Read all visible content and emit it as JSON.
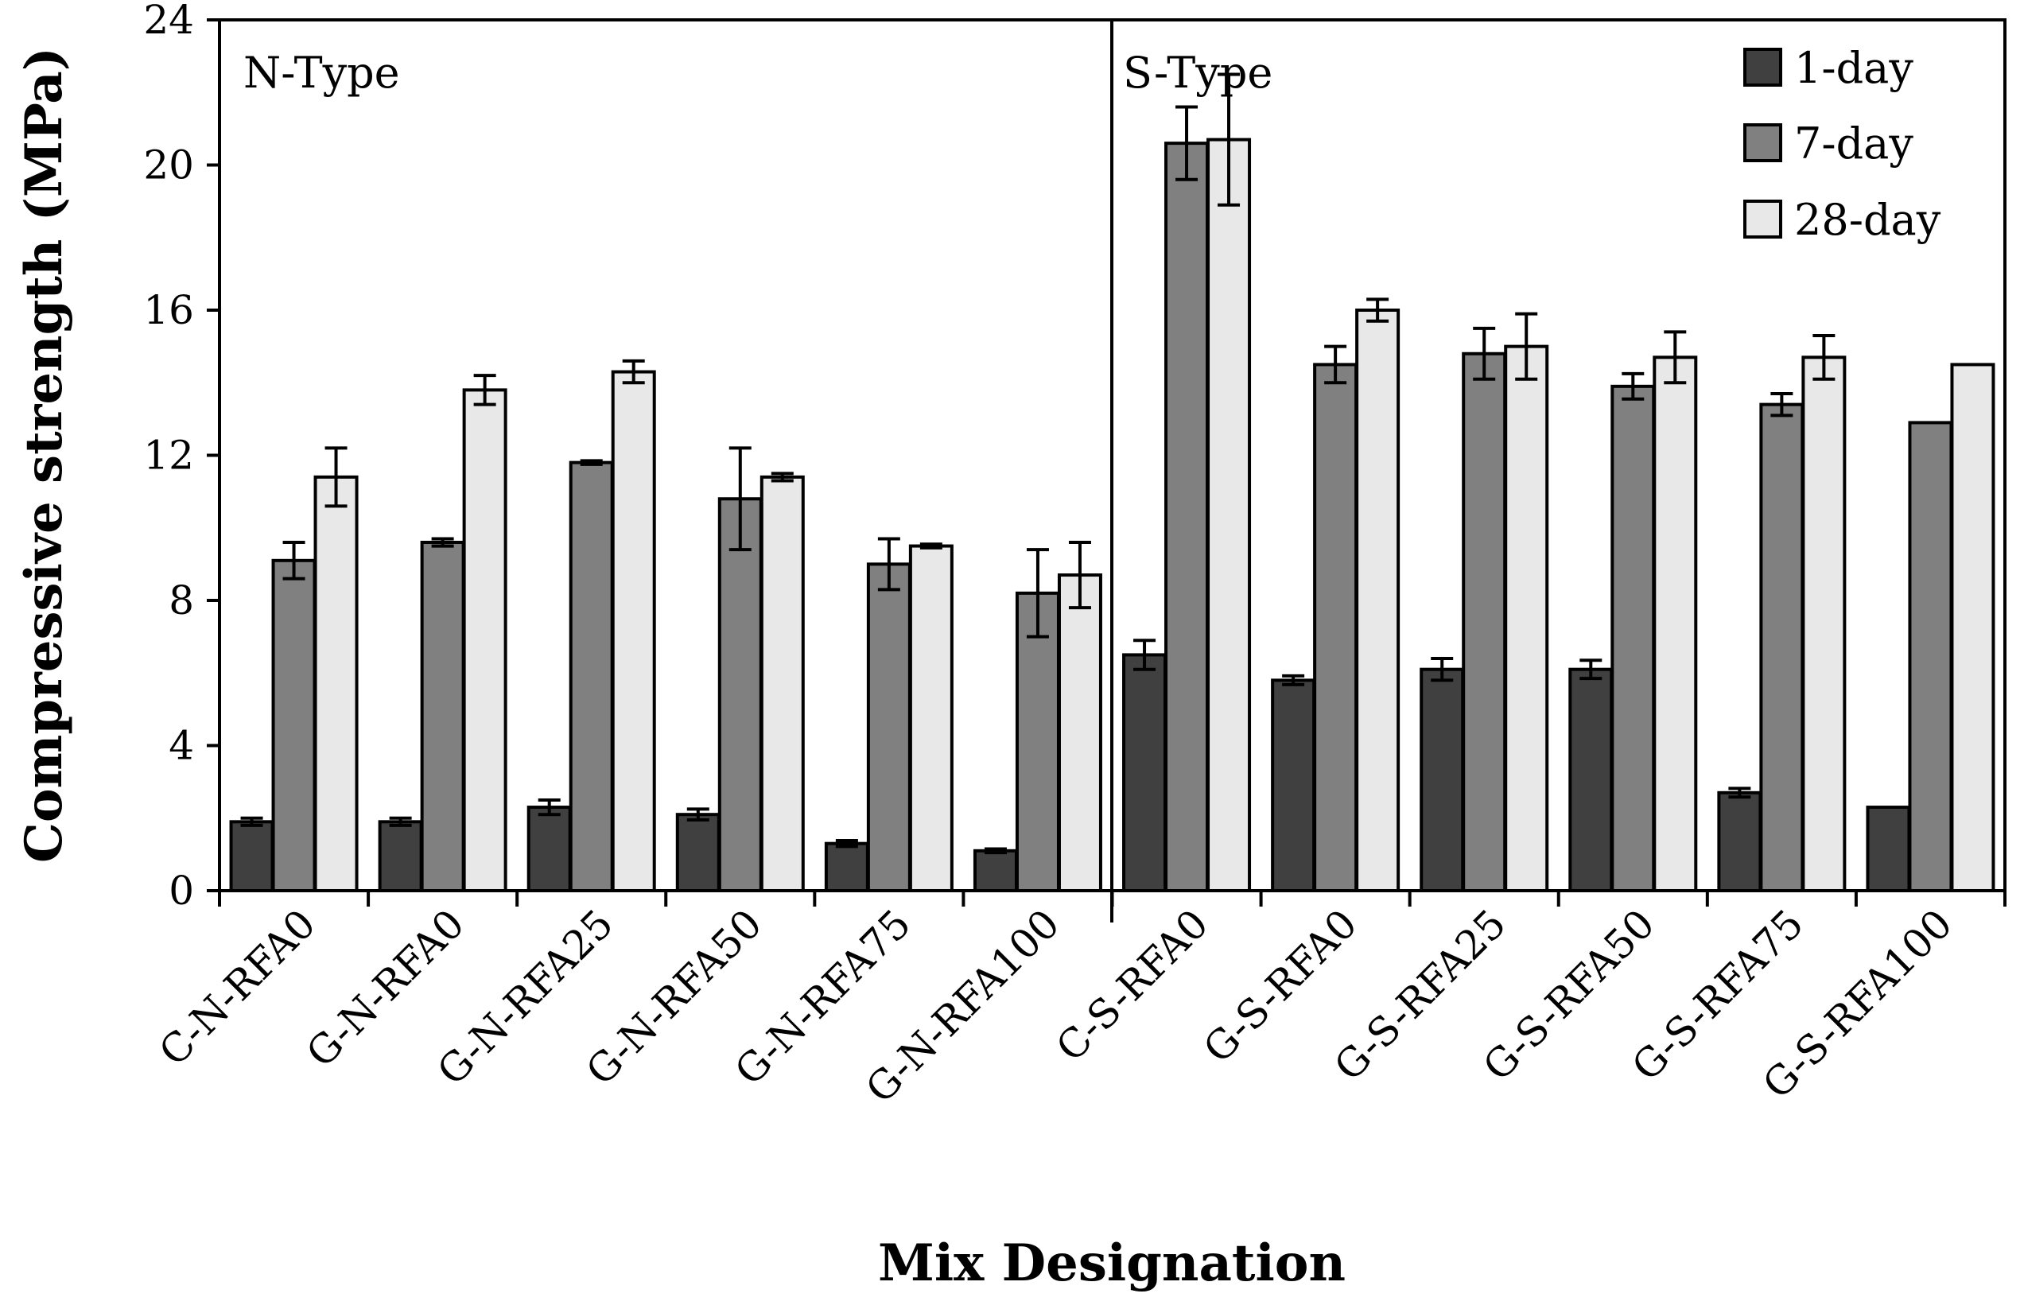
{
  "chart_data": {
    "type": "bar",
    "title": "",
    "xlabel": "Mix Designation",
    "ylabel": "Compressive strength (MPa)",
    "ylim": [
      0,
      24
    ],
    "yticks": [
      0,
      4,
      8,
      12,
      16,
      20,
      24
    ],
    "categories": [
      "C-N-RFA0",
      "G-N-RFA0",
      "G-N-RFA25",
      "G-N-RFA50",
      "G-N-RFA75",
      "G-N-RFA100",
      "C-S-RFA0",
      "G-S-RFA0",
      "G-S-RFA25",
      "G-S-RFA50",
      "G-S-RFA75",
      "G-S-RFA100"
    ],
    "series": [
      {
        "name": "1-day",
        "color": "#404040",
        "values": [
          1.9,
          1.9,
          2.3,
          2.1,
          1.3,
          1.1,
          6.5,
          5.8,
          6.1,
          6.1,
          2.7,
          2.3
        ],
        "errors": [
          0.1,
          0.1,
          0.2,
          0.15,
          0.08,
          0.05,
          0.4,
          0.12,
          0.3,
          0.25,
          0.12,
          0.0
        ]
      },
      {
        "name": "7-day",
        "color": "#808080",
        "values": [
          9.1,
          9.6,
          11.8,
          10.8,
          9.0,
          8.2,
          20.6,
          14.5,
          14.8,
          13.9,
          13.4,
          12.9
        ],
        "errors": [
          0.5,
          0.1,
          0.05,
          1.4,
          0.7,
          1.2,
          1.0,
          0.5,
          0.7,
          0.35,
          0.3,
          0.0
        ]
      },
      {
        "name": "28-day",
        "color": "#e8e8e8",
        "values": [
          11.4,
          13.8,
          14.3,
          11.4,
          9.5,
          8.7,
          20.7,
          16.0,
          15.0,
          14.7,
          14.7,
          14.5
        ],
        "errors": [
          0.8,
          0.4,
          0.3,
          0.1,
          0.05,
          0.9,
          1.8,
          0.3,
          0.9,
          0.7,
          0.6,
          0.0
        ]
      }
    ],
    "panels": [
      {
        "label": "N-Type",
        "first_category": 0,
        "last_category": 5
      },
      {
        "label": "S-Type",
        "first_category": 6,
        "last_category": 11
      }
    ],
    "legend": {
      "placement": "top-right",
      "entries": [
        "1-day",
        "7-day",
        "28-day"
      ]
    },
    "grid": false
  }
}
